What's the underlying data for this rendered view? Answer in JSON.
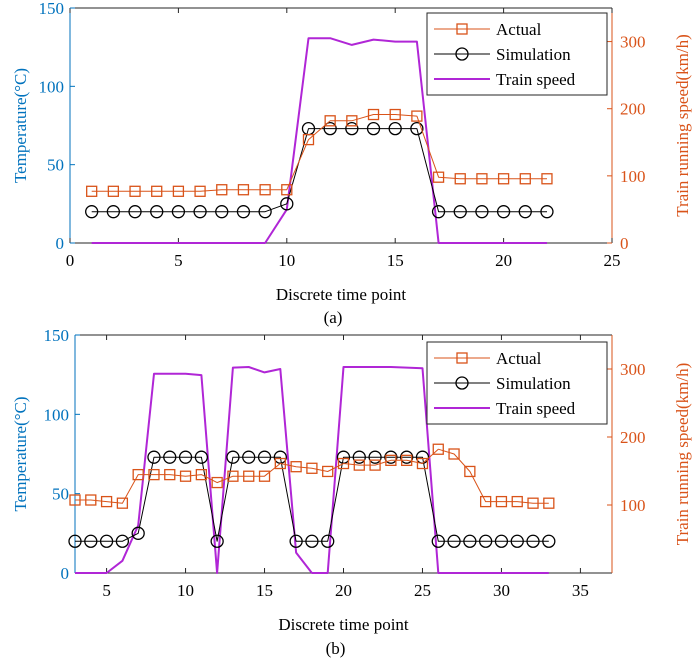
{
  "colors": {
    "actual": "#d95319",
    "simulation": "#000000",
    "speed": "#b026d6",
    "left_axis": "#0072bd",
    "right_axis": "#d95319",
    "frame": "#262626"
  },
  "chart_data": [
    {
      "type": "line",
      "panel_label": "(a)",
      "xlabel": "Discrete time point",
      "ylabel_left": "Temperature(°C)",
      "ylabel_right": "Train running speed(km/h)",
      "xlim": [
        0,
        25
      ],
      "ylim_left": [
        0,
        150
      ],
      "ylim_right": [
        0,
        350
      ],
      "xticks": [
        0,
        5,
        10,
        15,
        20,
        25
      ],
      "yticks_left": [
        0,
        50,
        100,
        150
      ],
      "yticks_right": [
        0,
        100,
        200,
        300
      ],
      "legend": {
        "placement": "top-right",
        "entries": [
          "Actual",
          "Simulation",
          "Train speed"
        ]
      },
      "grid": false,
      "series": [
        {
          "name": "Actual",
          "axis": "left",
          "marker": "square",
          "x": [
            1,
            2,
            3,
            4,
            5,
            6,
            7,
            8,
            9,
            10,
            11,
            12,
            13,
            14,
            15,
            16,
            17,
            18,
            19,
            20,
            21,
            22
          ],
          "values": [
            33,
            33,
            33,
            33,
            33,
            33,
            34,
            34,
            34,
            34,
            66,
            78,
            78,
            82,
            82,
            81,
            42,
            41,
            41,
            41,
            41,
            41
          ]
        },
        {
          "name": "Simulation",
          "axis": "left",
          "marker": "circle",
          "x": [
            1,
            2,
            3,
            4,
            5,
            6,
            7,
            8,
            9,
            10,
            11,
            12,
            13,
            14,
            15,
            16,
            17,
            18,
            19,
            20,
            21,
            22
          ],
          "values": [
            20,
            20,
            20,
            20,
            20,
            20,
            20,
            20,
            20,
            25,
            73,
            73,
            73,
            73,
            73,
            73,
            20,
            20,
            20,
            20,
            20,
            20
          ]
        },
        {
          "name": "Train speed",
          "axis": "right",
          "marker": "none",
          "x": [
            1,
            2,
            3,
            4,
            5,
            6,
            7,
            8,
            9,
            10,
            11,
            12,
            13,
            14,
            15,
            16,
            17,
            18,
            19,
            20,
            21,
            22
          ],
          "values": [
            0,
            0,
            0,
            0,
            0,
            0,
            0,
            0,
            0,
            50,
            305,
            305,
            295,
            303,
            300,
            300,
            0,
            0,
            0,
            0,
            0,
            0
          ]
        }
      ]
    },
    {
      "type": "line",
      "panel_label": "(b)",
      "xlabel": "Discrete time point",
      "ylabel_left": "Temperature(°C)",
      "ylabel_right": "Train running speed(km/h)",
      "xlim": [
        3,
        37
      ],
      "ylim_left": [
        0,
        150
      ],
      "ylim_right": [
        0,
        350
      ],
      "xticks": [
        5,
        10,
        15,
        20,
        25,
        30,
        35
      ],
      "yticks_left": [
        0,
        50,
        100,
        150
      ],
      "yticks_right": [
        100,
        200,
        300
      ],
      "legend": {
        "placement": "top-right",
        "entries": [
          "Actual",
          "Simulation",
          "Train speed"
        ]
      },
      "grid": false,
      "series": [
        {
          "name": "Actual",
          "axis": "left",
          "marker": "square",
          "x": [
            3,
            4,
            5,
            6,
            7,
            8,
            9,
            10,
            11,
            12,
            13,
            14,
            15,
            16,
            17,
            18,
            19,
            20,
            21,
            22,
            23,
            24,
            25,
            26,
            27,
            28,
            29,
            30,
            31,
            32,
            33
          ],
          "values": [
            46,
            46,
            45,
            44,
            62,
            62,
            62,
            61,
            62,
            57,
            61,
            61,
            61,
            69,
            67,
            66,
            64,
            69,
            68,
            68,
            71,
            71,
            69,
            78,
            75,
            64,
            45,
            45,
            45,
            44,
            44
          ]
        },
        {
          "name": "Simulation",
          "axis": "left",
          "marker": "circle",
          "x": [
            3,
            4,
            5,
            6,
            7,
            8,
            9,
            10,
            11,
            12,
            13,
            14,
            15,
            16,
            17,
            18,
            19,
            20,
            21,
            22,
            23,
            24,
            25,
            26,
            27,
            28,
            29,
            30,
            31,
            32,
            33
          ],
          "values": [
            20,
            20,
            20,
            20,
            25,
            73,
            73,
            73,
            73,
            20,
            73,
            73,
            73,
            73,
            20,
            20,
            20,
            73,
            73,
            73,
            73,
            73,
            73,
            20,
            20,
            20,
            20,
            20,
            20,
            20,
            20
          ]
        },
        {
          "name": "Train speed",
          "axis": "right",
          "marker": "none",
          "x": [
            3,
            4,
            5,
            6,
            7,
            8,
            9,
            10,
            11,
            12,
            13,
            14,
            15,
            16,
            17,
            18,
            19,
            20,
            21,
            22,
            23,
            24,
            25,
            26,
            27,
            28,
            29,
            30,
            31,
            32,
            33
          ],
          "values": [
            0,
            0,
            0,
            18,
            70,
            293,
            293,
            293,
            291,
            0,
            302,
            303,
            295,
            300,
            30,
            0,
            0,
            303,
            303,
            303,
            303,
            302,
            301,
            0,
            0,
            0,
            0,
            0,
            0,
            0,
            0
          ]
        }
      ]
    }
  ]
}
